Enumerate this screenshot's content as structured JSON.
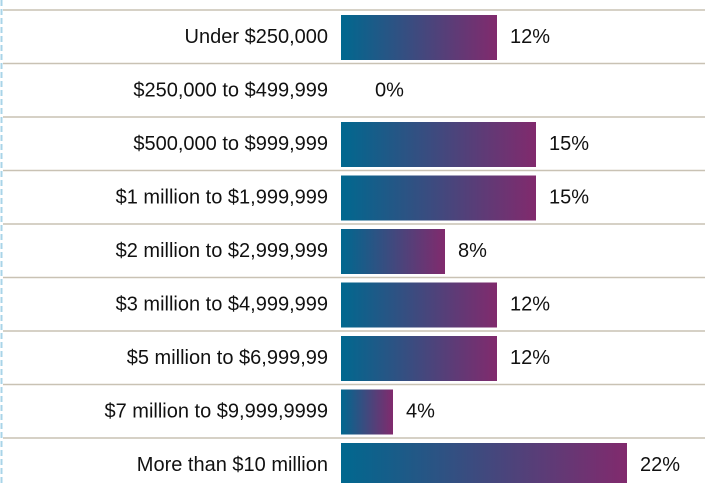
{
  "chart_data": {
    "type": "bar",
    "orientation": "horizontal",
    "categories": [
      "Under $250,000",
      "$250,000 to $499,999",
      "$500,000 to $999,999",
      "$1 million to $1,999,999",
      "$2 million to $2,999,999",
      "$3 million to $4,999,999",
      "$5 million to $6,999,99",
      "$7 million to $9,999,9999",
      "More than $10 million"
    ],
    "values": [
      12,
      0,
      15,
      15,
      8,
      12,
      12,
      4,
      22
    ],
    "value_labels": [
      "12%",
      "0%",
      "15%",
      "15%",
      "8%",
      "12%",
      "12%",
      "4%",
      "22%"
    ],
    "colors": [
      "#00688f",
      "#812a6d"
    ]
  }
}
